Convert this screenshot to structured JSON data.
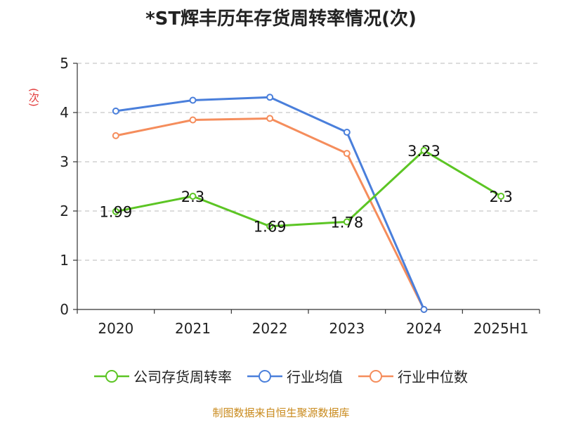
{
  "chart_data": {
    "type": "line",
    "title": "*ST辉丰历年存货周转率情况(次)",
    "ylabel": "(次)",
    "xlabel": "",
    "categories": [
      "2020",
      "2021",
      "2022",
      "2023",
      "2024",
      "2025H1"
    ],
    "ylim": [
      0,
      5
    ],
    "yticks": [
      0,
      1,
      2,
      3,
      4,
      5
    ],
    "grid": true,
    "legend_position": "bottom",
    "series": [
      {
        "name": "公司存货周转率",
        "color": "#5cc524",
        "values": [
          1.99,
          2.3,
          1.69,
          1.78,
          3.23,
          2.3
        ],
        "labels": [
          "1.99",
          "2.3",
          "1.69",
          "1.78",
          "3.23",
          "2.3"
        ]
      },
      {
        "name": "行业均值",
        "color": "#4a7fdb",
        "values": [
          4.03,
          4.25,
          4.31,
          3.6,
          0,
          null
        ],
        "labels": []
      },
      {
        "name": "行业中位数",
        "color": "#f58d5c",
        "values": [
          3.53,
          3.85,
          3.88,
          3.17,
          0,
          null
        ],
        "labels": []
      }
    ]
  },
  "source_note": "制图数据来自恒生聚源数据库"
}
